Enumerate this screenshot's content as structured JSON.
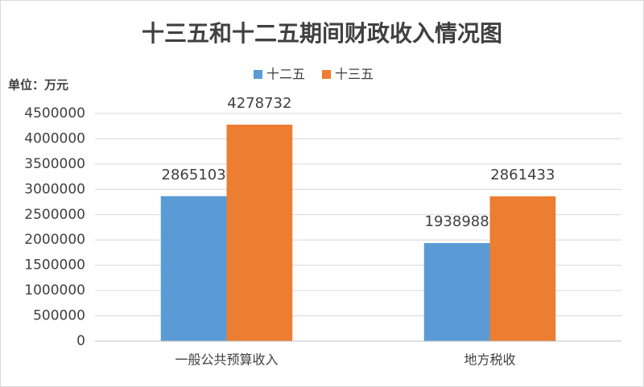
{
  "chart_data": {
    "type": "bar",
    "title": "十三五和十二五期间财政收入情况图",
    "y_label": "单位：万元",
    "categories": [
      "一般公共预算收入",
      "地方税收"
    ],
    "series": [
      {
        "name": "十二五",
        "color": "#5b9bd5",
        "values": [
          2865103,
          1938988
        ]
      },
      {
        "name": "十三五",
        "color": "#ed7d31",
        "values": [
          4278732,
          2861433
        ]
      }
    ],
    "ylim": [
      0,
      4500000
    ],
    "yticks": [
      0,
      500000,
      1000000,
      1500000,
      2000000,
      2500000,
      3000000,
      3500000,
      4000000,
      4500000
    ],
    "grid": true,
    "legend": "top",
    "data_labels": true
  }
}
